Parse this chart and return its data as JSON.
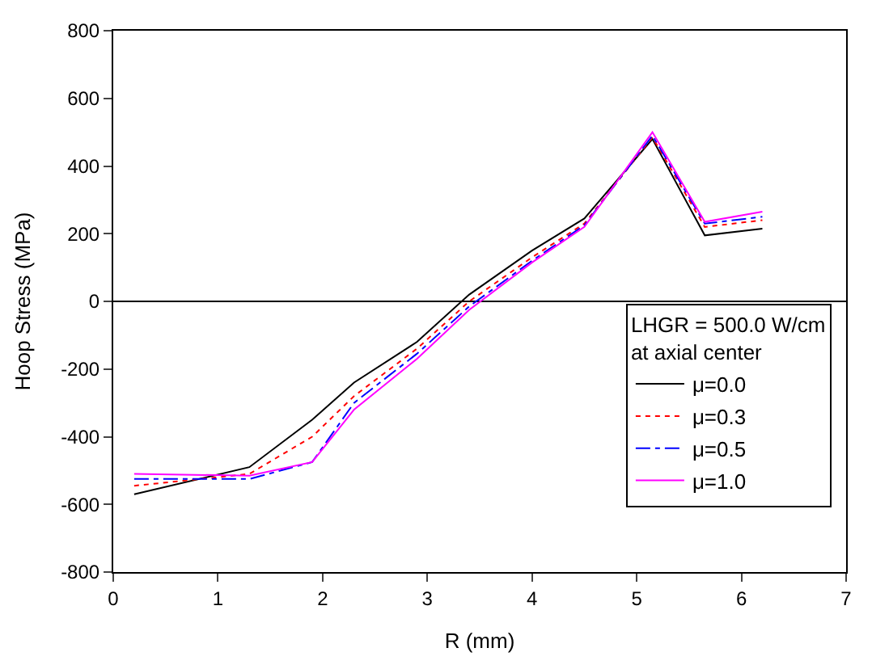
{
  "chart_data": {
    "type": "line",
    "xlabel": "R (mm)",
    "ylabel": "Hoop Stress (MPa)",
    "legend_title": "LHGR = 500.0 W/cm\nat axial center",
    "x": [
      0.2,
      1.3,
      1.9,
      2.3,
      2.9,
      3.4,
      4.0,
      4.5,
      5.15,
      5.65,
      6.2
    ],
    "series": [
      {
        "name": "μ=0.0",
        "color": "#000000",
        "line_style": "solid",
        "values": [
          -570,
          -490,
          -350,
          -240,
          -120,
          20,
          150,
          245,
          480,
          195,
          215
        ]
      },
      {
        "name": "μ=0.3",
        "color": "#ff0000",
        "line_style": "dotted",
        "values": [
          -545,
          -510,
          -400,
          -280,
          -140,
          0,
          130,
          230,
          485,
          220,
          240
        ]
      },
      {
        "name": "μ=0.5",
        "color": "#0000ff",
        "line_style": "dashed",
        "values": [
          -525,
          -525,
          -475,
          -300,
          -155,
          -15,
          120,
          225,
          490,
          230,
          250
        ]
      },
      {
        "name": "μ=1.0",
        "color": "#ff00ff",
        "line_style": "solid",
        "values": [
          -510,
          -515,
          -475,
          -320,
          -170,
          -25,
          115,
          220,
          500,
          235,
          265
        ]
      }
    ],
    "xlim": [
      0,
      7
    ],
    "xticks": [
      0,
      1,
      2,
      3,
      4,
      5,
      6,
      7
    ],
    "ylim": [
      -800,
      800
    ],
    "yticks": [
      -800,
      -600,
      -400,
      -200,
      0,
      200,
      400,
      600,
      800
    ],
    "ref_lines": [
      {
        "axis": "y",
        "value": 0,
        "color": "#000000"
      }
    ],
    "grid": false,
    "legend": "bottom right"
  }
}
